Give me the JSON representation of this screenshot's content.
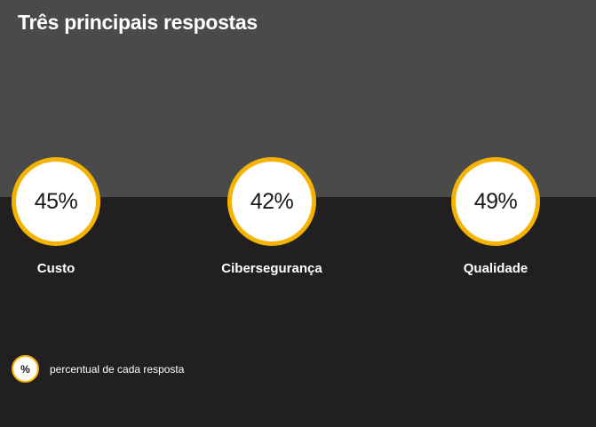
{
  "title": "Três principais respostas",
  "chart_data": {
    "type": "bar",
    "title": "Três principais respostas",
    "categories": [
      "Custo",
      "Cibersegurança",
      "Qualidade"
    ],
    "values": [
      45,
      42,
      49
    ],
    "labels": [
      "45%",
      "42%",
      "49%"
    ],
    "unit": "%"
  },
  "legend": {
    "symbol": "%",
    "text": "percentual de cada resposta"
  },
  "colors": {
    "accent": "#f5b300",
    "top_band": "#4a4a4a",
    "background": "#221f20"
  }
}
